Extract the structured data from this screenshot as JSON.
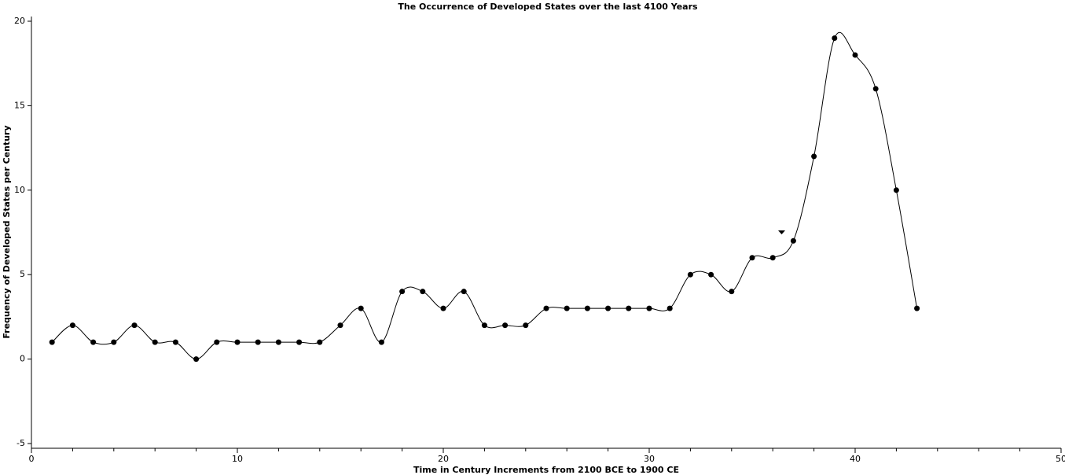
{
  "chart_data": {
    "type": "line",
    "title": "The Occurrence of Developed States over the last 4100 Years",
    "x_label": "Time in Century Increments from 2100 BCE to 1900 CE",
    "y_label": "Frequency of Developed States per Century",
    "x": [
      1,
      2,
      3,
      4,
      5,
      6,
      7,
      8,
      9,
      10,
      11,
      12,
      13,
      14,
      15,
      16,
      17,
      18,
      19,
      20,
      21,
      22,
      23,
      24,
      25,
      26,
      27,
      28,
      29,
      30,
      31,
      32,
      33,
      34,
      35,
      36,
      37,
      38,
      39,
      40,
      41,
      42,
      43
    ],
    "values": [
      1,
      2,
      1,
      1,
      2,
      1,
      1,
      0,
      1,
      1,
      1,
      1,
      1,
      1,
      2,
      3,
      1,
      4,
      4,
      3,
      4,
      2,
      2,
      2,
      3,
      3,
      3,
      3,
      3,
      3,
      3,
      5,
      5,
      4,
      6,
      6,
      7,
      12,
      19,
      18,
      16,
      10,
      3
    ],
    "color": "#000000",
    "xlim": [
      0,
      50
    ],
    "xticks": [
      0,
      10,
      20,
      30,
      40,
      50
    ],
    "ylim": [
      -5,
      20
    ],
    "yticks": [
      -5,
      0,
      5,
      10,
      15,
      20
    ]
  }
}
